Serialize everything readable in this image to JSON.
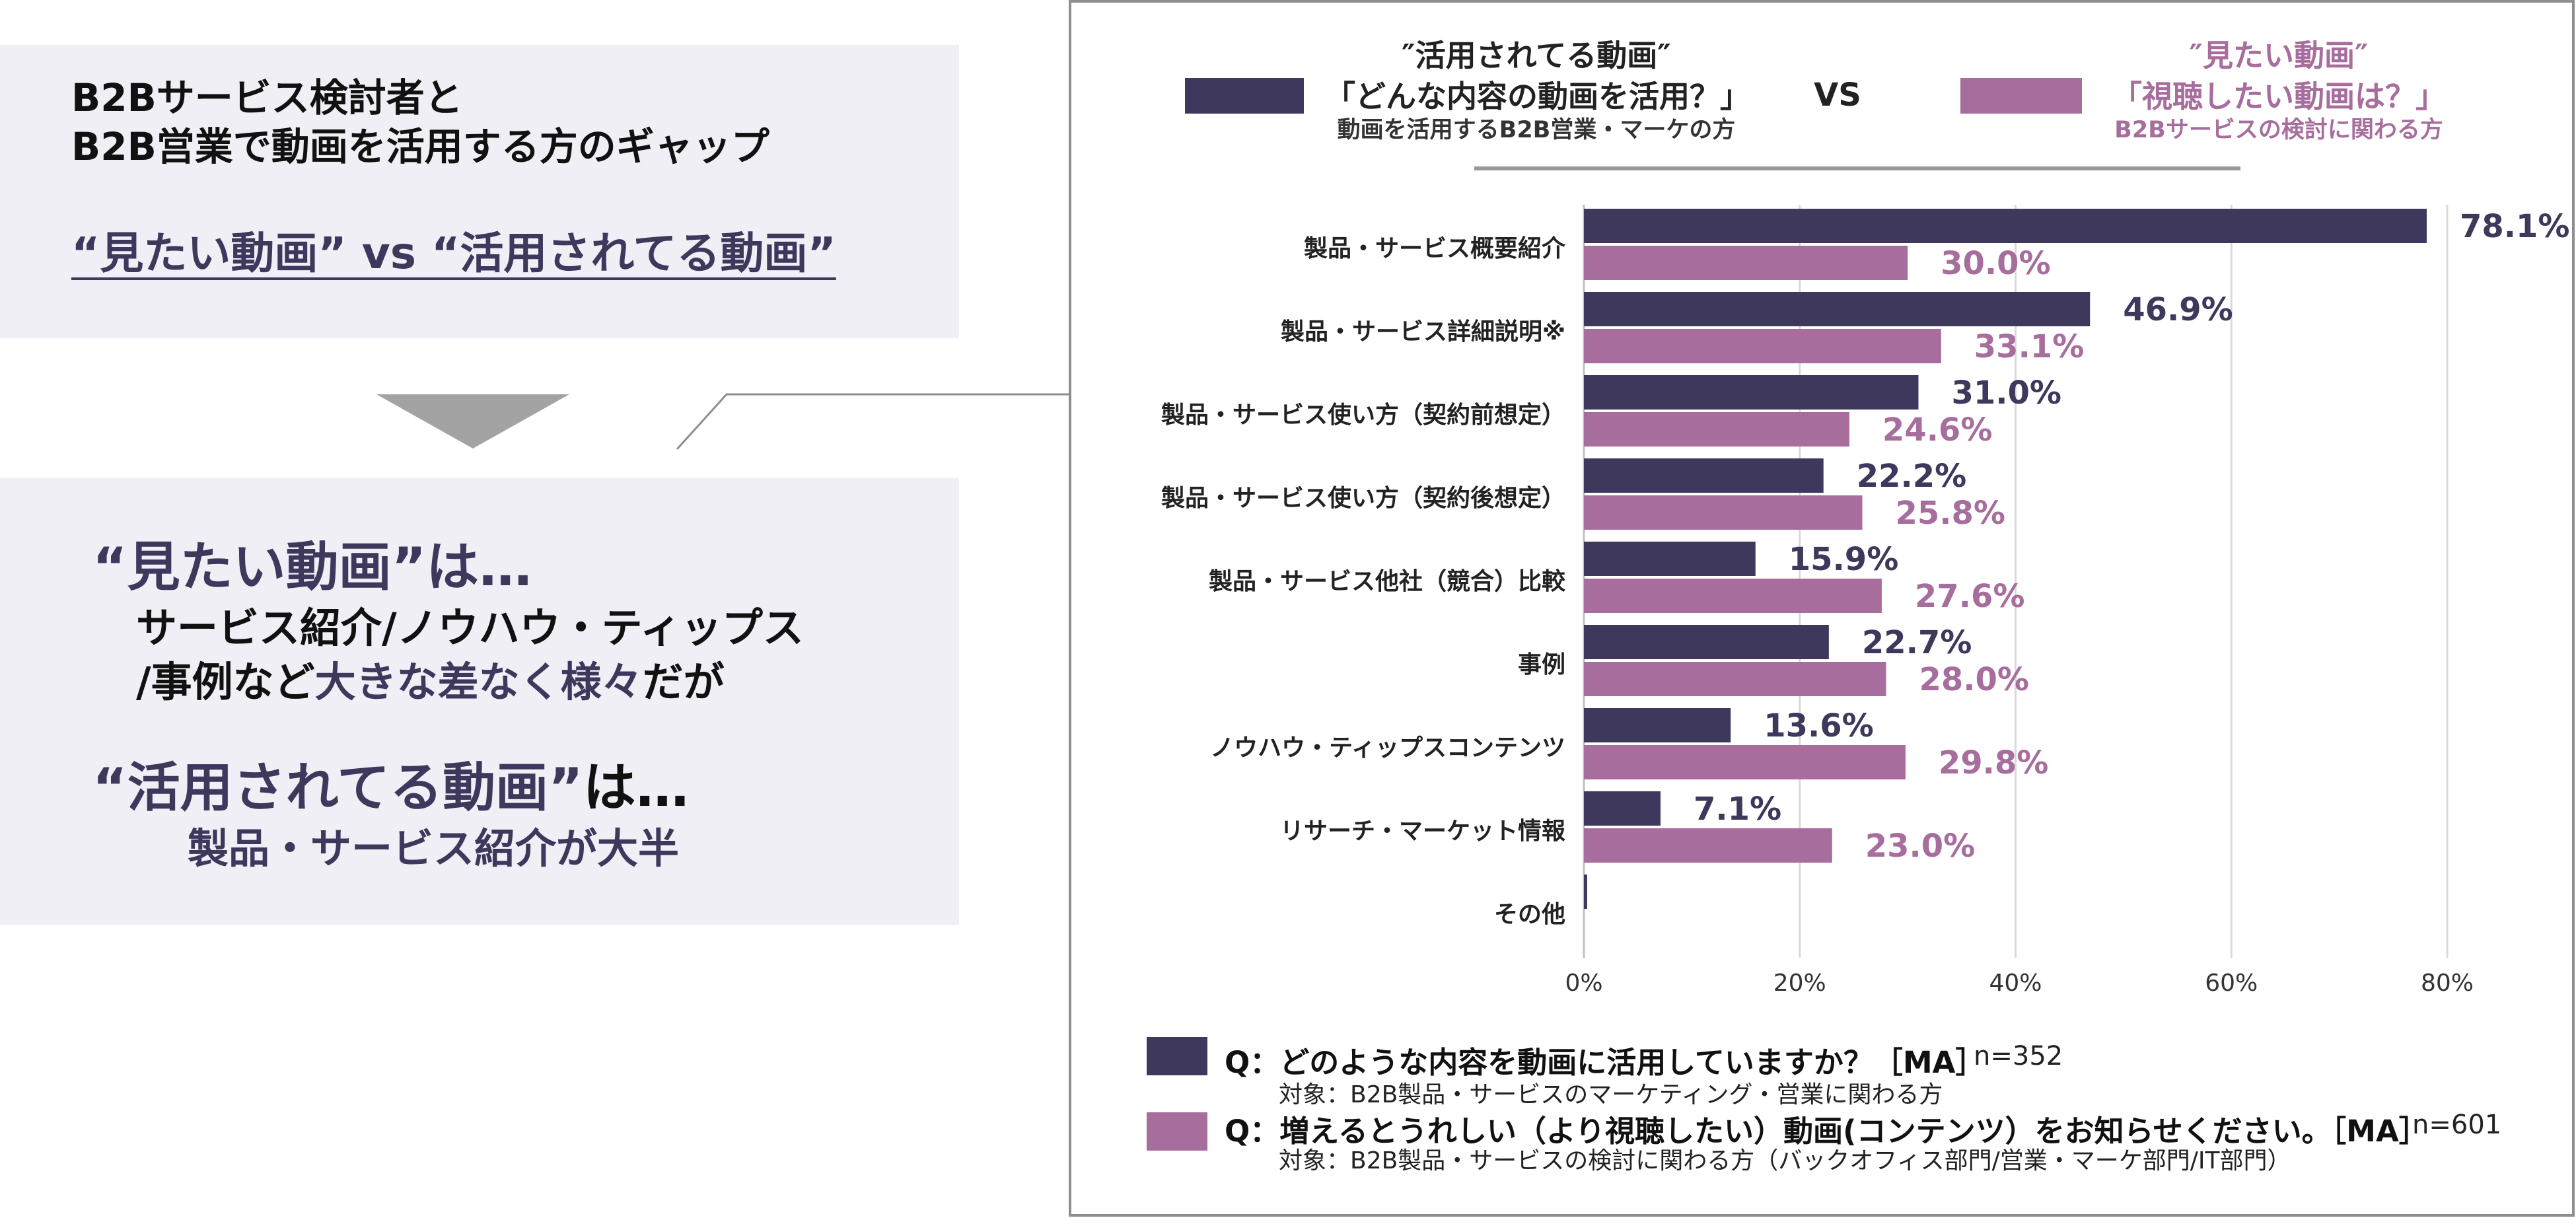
{
  "left": {
    "header_line1": "B2Bサービス検討者と",
    "header_line2": "B2B営業で動画を活用する方のギャップ",
    "highlight": "“見たい動画” vs “活用されてる動画”",
    "block1_title_a": "“見たい動画”",
    "block1_title_b": "は…",
    "block1_line1": "サービス紹介/ノウハウ・ティップス",
    "block1_line2_a": "/事例など",
    "block1_line2_b": "大きな差なく様々",
    "block1_line2_c": "だが",
    "block2_title_a": "“活用されてる動画”",
    "block2_title_b": "は…",
    "block2_line1": "製品・サービス紹介が大半"
  },
  "legend": {
    "left_title": "″活用されてる動画″",
    "left_question": "「どんな内容の動画を活用？」",
    "left_sub": "動画を活用するB2B営業・マーケの方",
    "vs": "VS",
    "right_title": "″見たい動画″",
    "right_question": "「視聴したい動画は？」",
    "right_sub": "B2Bサービスの検討に関わる方"
  },
  "questions": {
    "q1": "Q：どのような内容を動画に活用していますか？［MA］",
    "q1_n": "n=352",
    "q1_sub": "対象：B2B製品・サービスのマーケティング・営業に関わる方",
    "q2": "Q：増えるとうれしい（より視聴したい）動画(コンテンツ）をお知らせください。［MA］",
    "q2_n": "n=601",
    "q2_sub": "対象：B2B製品・サービスの検討に関わる方（バックオフィス部門/営業・マーケ部門/IT部門）"
  },
  "colors": {
    "dark": "#3d385c",
    "pink": "#a76d9d",
    "grid": "#d9d9d9",
    "panel": "#efeff5"
  },
  "chart_data": {
    "type": "bar",
    "orientation": "horizontal",
    "categories": [
      "製品・サービス概要紹介",
      "製品・サービス詳細説明※",
      "製品・サービス使い方（契約前想定）",
      "製品・サービス使い方（契約後想定）",
      "製品・サービス他社（競合）比較",
      "事例",
      "ノウハウ・ティップスコンテンツ",
      "リサーチ・マーケット情報",
      "その他"
    ],
    "series": [
      {
        "values": [
          78.1,
          46.9,
          31.0,
          22.2,
          15.9,
          22.7,
          13.6,
          7.1,
          0.3
        ],
        "labels": [
          "78.1%",
          "46.9%",
          "31.0%",
          "22.2%",
          "15.9%",
          "22.7%",
          "13.6%",
          "7.1%",
          ""
        ]
      },
      {
        "values": [
          30.0,
          33.1,
          24.6,
          25.8,
          27.6,
          28.0,
          29.8,
          23.0,
          0
        ],
        "labels": [
          "30.0%",
          "33.1%",
          "24.6%",
          "25.8%",
          "27.6%",
          "28.0%",
          "29.8%",
          "23.0%",
          ""
        ]
      }
    ],
    "xlim": [
      0,
      80
    ],
    "xticks": [
      "0%",
      "20%",
      "40%",
      "60%",
      "80%"
    ],
    "grid": true
  }
}
